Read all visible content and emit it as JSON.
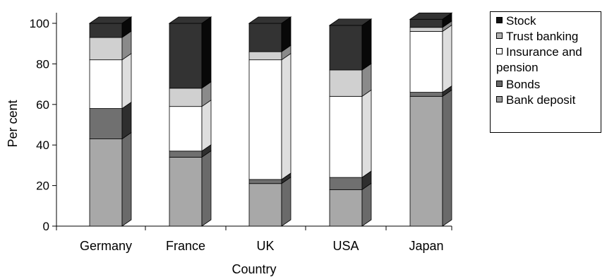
{
  "chart_data": {
    "type": "bar",
    "stacked": true,
    "three_d": true,
    "xlabel": "Country",
    "ylabel": "Per cent",
    "ylim": [
      0,
      100
    ],
    "yticks": [
      "0",
      "20",
      "40",
      "60",
      "80",
      "100"
    ],
    "grid": false,
    "legend_position": "right",
    "categories": [
      "Germany",
      "France",
      "UK",
      "USA",
      "Japan"
    ],
    "series": [
      {
        "name": "Bank deposit",
        "values": [
          43,
          34,
          21,
          18,
          64
        ],
        "color": "#a8a8a8",
        "side_color": "#6a6a6a"
      },
      {
        "name": "Bonds",
        "values": [
          15,
          3,
          2,
          6,
          2
        ],
        "color": "#707070",
        "side_color": "#2e2e2e"
      },
      {
        "name": "Insurance and pension",
        "values": [
          24,
          22,
          59,
          40,
          30
        ],
        "color": "#ffffff",
        "side_color": "#dedede"
      },
      {
        "name": "Trust banking",
        "values": [
          11,
          9,
          4,
          13,
          2
        ],
        "color": "#d0d0d0",
        "side_color": "#8a8a8a"
      },
      {
        "name": "Stock",
        "values": [
          7,
          32,
          14,
          22,
          4
        ],
        "color": "#333333",
        "side_color": "#080808"
      }
    ],
    "legend": [
      {
        "label": "Stock",
        "color": "#111111"
      },
      {
        "label": "Trust banking",
        "color": "#b0b0b0"
      },
      {
        "label": "Insurance and\npension",
        "color": "#ffffff"
      },
      {
        "label": "Bonds",
        "color": "#666666"
      },
      {
        "label": "Bank deposit",
        "color": "#999999"
      }
    ]
  }
}
